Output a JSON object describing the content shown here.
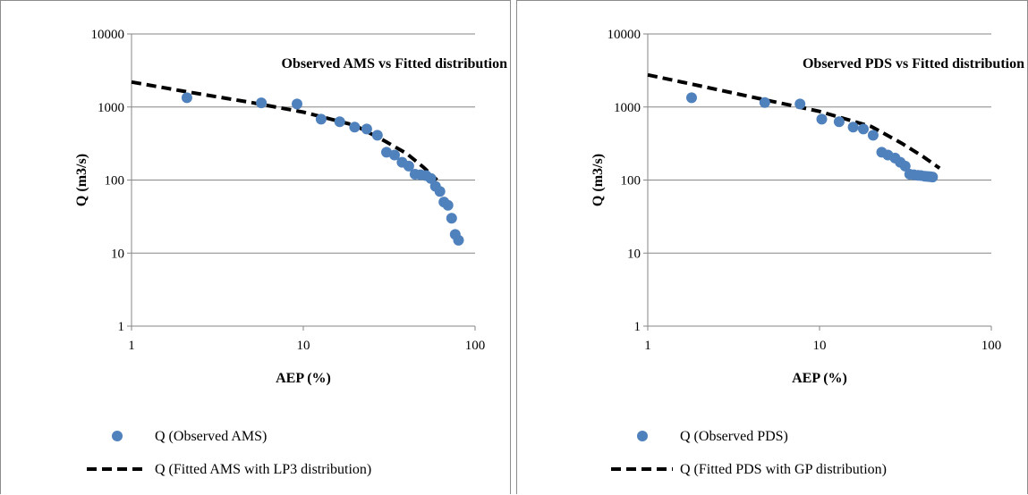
{
  "chart_data": [
    {
      "type": "scatter",
      "title": "Observed AMS vs Fitted distribution",
      "xlabel": "AEP (%)",
      "ylabel": "Q (m3/s)",
      "x_scale": "log",
      "y_scale": "log",
      "xlim": [
        1,
        100
      ],
      "ylim": [
        1,
        10000
      ],
      "x_ticks": [
        "1",
        "10",
        "100"
      ],
      "y_ticks": [
        "1",
        "10",
        "100",
        "1000",
        "10000"
      ],
      "grid": "horizontal",
      "legend_position": "bottom",
      "series": [
        {
          "name": "Q (Observed AMS)",
          "style": "markers",
          "color": "#4f81bd",
          "x": [
            2.1,
            5.7,
            9.2,
            12.7,
            16.3,
            19.9,
            23.4,
            27.0,
            30.5,
            34.0,
            37.6,
            41.1,
            44.7,
            48.2,
            51.8,
            55.3,
            58.8,
            62.4,
            65.9,
            69.5,
            73.0,
            76.6,
            80.1
          ],
          "y": [
            1340,
            1140,
            1100,
            680,
            630,
            530,
            500,
            410,
            240,
            220,
            175,
            155,
            120,
            118,
            115,
            105,
            82,
            70,
            50,
            45,
            30,
            18,
            15
          ]
        },
        {
          "name": "Q (Fitted AMS with LP3 distribution)",
          "style": "dashed-line",
          "color": "#000000",
          "x": [
            1,
            2,
            5,
            10,
            20,
            30,
            40,
            50,
            60
          ],
          "y": [
            2200,
            1650,
            1150,
            850,
            560,
            340,
            230,
            150,
            100
          ]
        }
      ]
    },
    {
      "type": "scatter",
      "title": "Observed PDS vs Fitted distribution",
      "xlabel": "AEP (%)",
      "ylabel": "Q (m3/s)",
      "x_scale": "log",
      "y_scale": "log",
      "xlim": [
        1,
        100
      ],
      "ylim": [
        1,
        10000
      ],
      "x_ticks": [
        "1",
        "10",
        "100"
      ],
      "y_ticks": [
        "1",
        "10",
        "100",
        "1000",
        "10000"
      ],
      "grid": "horizontal",
      "legend_position": "bottom",
      "series": [
        {
          "name": "Q (Observed PDS)",
          "style": "markers",
          "color": "#4f81bd",
          "x": [
            1.8,
            4.8,
            7.7,
            10.3,
            13.0,
            15.7,
            18.0,
            20.5,
            23.0,
            25.0,
            27.5,
            29.5,
            31.5,
            33.5,
            35.5,
            37.5,
            39.0,
            41.0,
            42.5,
            44.0,
            45.5
          ],
          "y": [
            1340,
            1150,
            1100,
            680,
            630,
            530,
            500,
            410,
            240,
            220,
            200,
            175,
            155,
            120,
            118,
            116,
            115,
            113,
            112,
            111,
            110
          ]
        },
        {
          "name": "Q (Fitted PDS with GP distribution)",
          "style": "dashed-line",
          "color": "#000000",
          "x": [
            1,
            2,
            5,
            10,
            20,
            30,
            40,
            50
          ],
          "y": [
            2750,
            1950,
            1230,
            870,
            540,
            320,
            210,
            145
          ]
        }
      ]
    }
  ]
}
